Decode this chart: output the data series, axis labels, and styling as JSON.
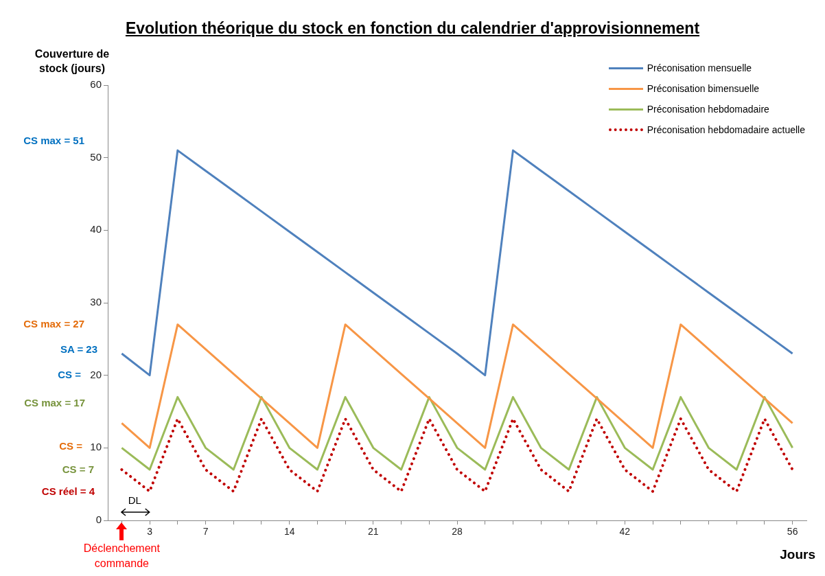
{
  "chart_data": {
    "type": "line",
    "title": "Evolution théorique du stock en fonction du calendrier d'approvisionnement",
    "xlabel": "Jours",
    "ylabel": "Couverture de stock (jours)",
    "categories": [
      null,
      "3",
      null,
      "7",
      null,
      null,
      "14",
      null,
      null,
      "21",
      null,
      null,
      "28",
      null,
      null,
      null,
      null,
      null,
      "42",
      null,
      null,
      null,
      null,
      null,
      "56"
    ],
    "series": [
      {
        "name": "Préconisation mensuelle",
        "color": "#4f81bd",
        "values": [
          23,
          20,
          51,
          48.2,
          45.4,
          42.6,
          39.8,
          37,
          34.2,
          31.4,
          28.6,
          25.8,
          23,
          20,
          51,
          48.2,
          45.4,
          42.6,
          39.8,
          37,
          34.2,
          31.4,
          28.6,
          25.8,
          23
        ]
      },
      {
        "name": "Préconisation bimensuelle",
        "color": "#f79646",
        "values": [
          13.4,
          10,
          27,
          23.6,
          20.2,
          16.8,
          13.4,
          10,
          27,
          23.6,
          20.2,
          16.8,
          13.4,
          10,
          27,
          23.6,
          20.2,
          16.8,
          13.4,
          10,
          27,
          23.6,
          20.2,
          16.8,
          13.4
        ]
      },
      {
        "name": "Préconisation hebdomadaire",
        "color": "#9bbb59",
        "values": [
          10,
          7,
          17,
          10,
          7,
          17,
          10,
          7,
          17,
          10,
          7,
          17,
          10,
          7,
          17,
          10,
          7,
          17,
          10,
          7,
          17,
          10,
          7,
          17,
          10
        ]
      },
      {
        "name": "Préconisation hebdomadaire actuelle",
        "color": "#c00000",
        "line_style": "dotted",
        "values": [
          7,
          4,
          14,
          7,
          4,
          14,
          7,
          4,
          14,
          7,
          4,
          14,
          7,
          4,
          14,
          7,
          4,
          14,
          7,
          4,
          14,
          7,
          4,
          14,
          7
        ]
      }
    ],
    "ylim": [
      0,
      60
    ],
    "yticks": [
      0,
      10,
      20,
      30,
      40,
      50,
      60
    ],
    "grid": false,
    "legend": "top right",
    "marker": "none",
    "annotations": [
      "CS max = 51",
      "CS max = 27",
      "SA = 23",
      "CS =",
      "CS max = 17",
      "CS =",
      "CS = 7",
      "CS réel = 4",
      "DL",
      "Déclenchement commande"
    ]
  }
}
